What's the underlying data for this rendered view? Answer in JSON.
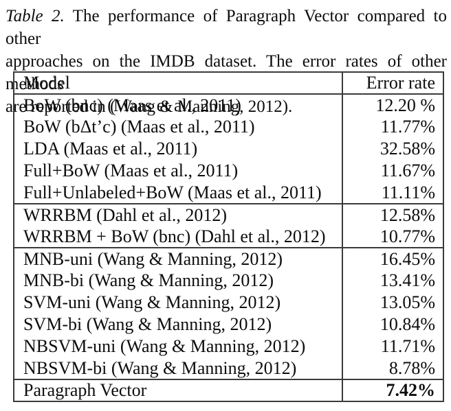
{
  "caption": {
    "lines": [
      {
        "label": "Table 2.",
        "text": " The performance of Paragraph Vector compared to other"
      },
      {
        "text": "approaches on the IMDB dataset. The error rates of other methods"
      },
      {
        "text": "are reported in (Wang & Manning, 2012)."
      }
    ]
  },
  "table": {
    "header": {
      "model": "Model",
      "error_rate": "Error rate"
    },
    "rows": [
      {
        "model": "BoW (bnc) (Maas et al., 2011)",
        "rate": "12.20 %"
      },
      {
        "model": "BoW (bΔt’c) (Maas et al., 2011)",
        "rate": "11.77%"
      },
      {
        "model": "LDA (Maas et al., 2011)",
        "rate": "32.58%"
      },
      {
        "model": "Full+BoW (Maas et al., 2011)",
        "rate": "11.67%"
      },
      {
        "model": "Full+Unlabeled+BoW (Maas et al., 2011)",
        "rate": "11.11%"
      },
      {
        "model": "WRRBM (Dahl et al., 2012)",
        "rate": "12.58%"
      },
      {
        "model": "WRRBM + BoW (bnc) (Dahl et al., 2012)",
        "rate": "10.77%"
      },
      {
        "model": "MNB-uni (Wang & Manning, 2012)",
        "rate": "16.45%"
      },
      {
        "model": "MNB-bi (Wang & Manning, 2012)",
        "rate": "13.41%"
      },
      {
        "model": "SVM-uni (Wang & Manning, 2012)",
        "rate": "13.05%"
      },
      {
        "model": "SVM-bi (Wang & Manning, 2012)",
        "rate": "10.84%"
      },
      {
        "model": "NBSVM-uni (Wang & Manning, 2012)",
        "rate": "11.71%"
      },
      {
        "model": "NBSVM-bi (Wang & Manning, 2012)",
        "rate": "8.78%"
      },
      {
        "model": "Paragraph Vector",
        "rate": "7.42%"
      }
    ]
  },
  "colors": {
    "text": "#0d0d0d",
    "border": "#3a3a3a",
    "background": "#ffffff"
  }
}
